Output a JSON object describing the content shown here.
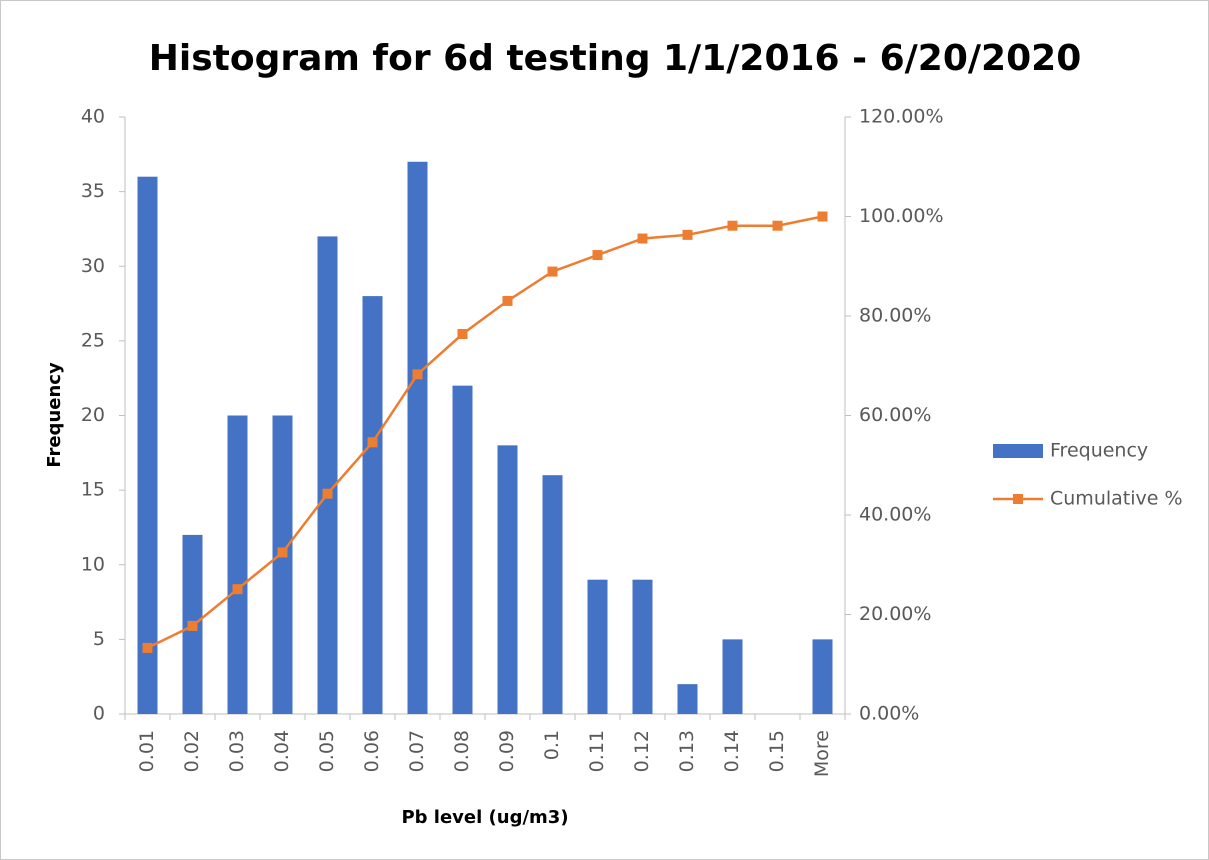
{
  "chart_data": {
    "type": "bar",
    "title": "Histogram for 6d testing 1/1/2016 - 6/20/2020",
    "x_label": "Pb level (ug/m3)",
    "y_label": "Frequency",
    "categories": [
      "0.01",
      "0.02",
      "0.03",
      "0.04",
      "0.05",
      "0.06",
      "0.07",
      "0.08",
      "0.09",
      "0.1",
      "0.11",
      "0.12",
      "0.13",
      "0.14",
      "0.15",
      "More"
    ],
    "series": [
      {
        "name": "Frequency",
        "type": "bar",
        "color": "#4472c4",
        "values": [
          36,
          12,
          20,
          20,
          32,
          28,
          37,
          22,
          18,
          16,
          9,
          9,
          2,
          5,
          0,
          5
        ]
      },
      {
        "name": "Cumulative %",
        "type": "line",
        "axis": "y2",
        "color": "#ed7d31",
        "values": [
          13.28,
          17.71,
          25.09,
          32.47,
          44.28,
          54.61,
          68.27,
          76.38,
          83.03,
          88.93,
          92.25,
          95.57,
          96.31,
          98.15,
          98.15,
          100.0
        ]
      }
    ],
    "ylim": [
      0,
      40
    ],
    "yticks": [
      0,
      5,
      10,
      15,
      20,
      25,
      30,
      35,
      40
    ],
    "y2lim": [
      0,
      120
    ],
    "y2ticks": [
      {
        "value": 0,
        "label": "0.00%"
      },
      {
        "value": 20,
        "label": "20.00%"
      },
      {
        "value": 40,
        "label": "40.00%"
      },
      {
        "value": 60,
        "label": "60.00%"
      },
      {
        "value": 80,
        "label": "80.00%"
      },
      {
        "value": 100,
        "label": "100.00%"
      },
      {
        "value": 120,
        "label": "120.00%"
      }
    ],
    "grid": false,
    "legend": "right"
  }
}
